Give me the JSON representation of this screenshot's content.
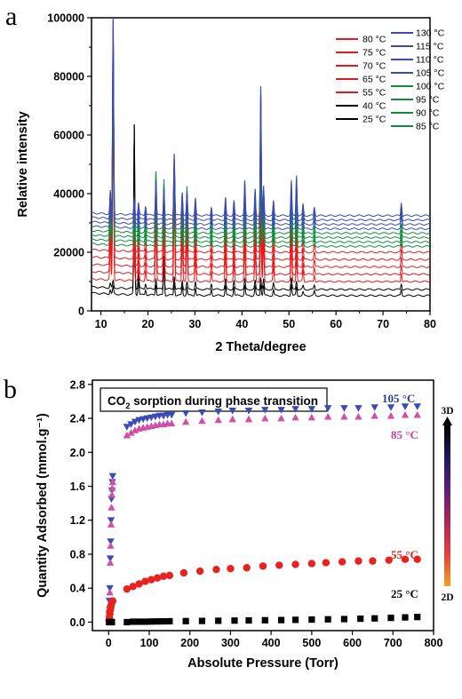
{
  "chart_data": [
    {
      "panel": "a",
      "type": "line",
      "xlabel": "2 Theta/degree",
      "ylabel": "Relative intensity",
      "xlim": [
        8,
        80
      ],
      "ylim": [
        0,
        100000
      ],
      "xticks": [
        "10",
        "20",
        "30",
        "40",
        "50",
        "60",
        "70",
        "80"
      ],
      "yticks": [
        "0",
        "20000",
        "40000",
        "60000",
        "80000",
        "100000"
      ],
      "legend_placement": "top-right",
      "peaks_2theta": [
        12.0,
        12.6,
        17.1,
        18.0,
        19.5,
        21.7,
        23.4,
        25.6,
        27.3,
        28.3,
        30.1,
        33.5,
        36.5,
        38.3,
        40.6,
        42.8,
        44.0,
        44.6,
        46.7,
        50.5,
        51.6,
        53.0,
        55.4,
        73.9
      ],
      "series": [
        {
          "name": "25 °C",
          "color": "#000000",
          "baseline": 5200,
          "peaks": [
            1500,
            2500,
            58000,
            5500,
            1800,
            3500,
            11500,
            4500,
            3000,
            2500,
            2500,
            2000,
            3500,
            3000,
            3500,
            3000,
            4000,
            3500,
            2000,
            4000,
            3000,
            1200,
            1500,
            2000
          ]
        },
        {
          "name": "40 °C",
          "color": "#000000",
          "baseline": 7300,
          "peaks": [
            1500,
            2500,
            56000,
            5500,
            1800,
            3500,
            11500,
            4500,
            3000,
            2500,
            2500,
            2000,
            3500,
            3000,
            3500,
            3000,
            4000,
            3500,
            2000,
            4000,
            3000,
            1200,
            1500,
            2000
          ]
        },
        {
          "name": "55 °C",
          "color": "#e8191c",
          "baseline": 10000,
          "peaks": [
            12000,
            60000,
            7500,
            4500,
            3500,
            22000,
            19000,
            28000,
            14000,
            16000,
            7500,
            3500,
            9000,
            5500,
            12000,
            10000,
            22000,
            13000,
            5000,
            12000,
            7500,
            4000,
            2500,
            3000
          ]
        },
        {
          "name": "65 °C",
          "color": "#e8191c",
          "baseline": 12500,
          "peaks": [
            12000,
            62000,
            7500,
            4500,
            3500,
            22000,
            19000,
            28000,
            14000,
            16000,
            7500,
            3500,
            9000,
            5500,
            12000,
            10000,
            22000,
            13000,
            5000,
            12000,
            7500,
            4000,
            2500,
            3000
          ]
        },
        {
          "name": "70 °C",
          "color": "#e8191c",
          "baseline": 15000,
          "peaks": [
            12000,
            62000,
            7500,
            4500,
            3500,
            22000,
            19000,
            28000,
            14000,
            16000,
            7500,
            3500,
            9000,
            5500,
            12000,
            10000,
            22000,
            13000,
            5000,
            12000,
            7500,
            4000,
            2500,
            3000
          ]
        },
        {
          "name": "75 °C",
          "color": "#e8191c",
          "baseline": 17500,
          "peaks": [
            12000,
            64000,
            7500,
            4500,
            3500,
            22000,
            19000,
            28000,
            14000,
            16000,
            7500,
            3500,
            9000,
            5500,
            12000,
            10000,
            22000,
            13000,
            5000,
            12000,
            7500,
            4000,
            2500,
            3000
          ]
        },
        {
          "name": "80 °C",
          "color": "#e8191c",
          "baseline": 20000,
          "peaks": [
            12000,
            64000,
            7500,
            4500,
            3500,
            22000,
            19000,
            28000,
            14000,
            16000,
            7500,
            3500,
            9000,
            5500,
            12000,
            10000,
            22000,
            13000,
            5000,
            12000,
            7500,
            4000,
            2500,
            3000
          ]
        },
        {
          "name": "85 °C",
          "color": "#0e8f3c",
          "baseline": 22000,
          "peaks": [
            12000,
            65000,
            7500,
            4500,
            3500,
            21000,
            18000,
            26000,
            14000,
            16000,
            7500,
            3500,
            9000,
            5500,
            12000,
            10000,
            28000,
            13000,
            5000,
            12000,
            9000,
            4000,
            2500,
            3000
          ]
        },
        {
          "name": "90 °C",
          "color": "#0e8f3c",
          "baseline": 23500,
          "peaks": [
            12000,
            65000,
            7500,
            4500,
            3500,
            21000,
            18000,
            26000,
            14000,
            16000,
            7500,
            3500,
            9000,
            5500,
            12000,
            10000,
            30000,
            13000,
            5000,
            12000,
            9000,
            4000,
            2500,
            3000
          ]
        },
        {
          "name": "95 °C",
          "color": "#0e8f3c",
          "baseline": 25000,
          "peaks": [
            12000,
            66000,
            7500,
            4500,
            3500,
            21000,
            18000,
            26000,
            14000,
            16000,
            7500,
            3500,
            9000,
            5500,
            12000,
            10000,
            32000,
            13000,
            5000,
            12000,
            9000,
            4000,
            2500,
            3000
          ]
        },
        {
          "name": "100 °C",
          "color": "#0e8f3c",
          "baseline": 26500,
          "peaks": [
            12000,
            66000,
            7500,
            4500,
            3500,
            21000,
            18000,
            26000,
            14000,
            16000,
            7500,
            3500,
            9000,
            5500,
            12000,
            10000,
            35000,
            13000,
            5000,
            12000,
            10000,
            4000,
            2500,
            3000
          ]
        },
        {
          "name": "105 °C",
          "color": "#3a4bb0",
          "baseline": 28000,
          "peaks": [
            8000,
            70000,
            6000,
            4000,
            3000,
            12000,
            9000,
            22000,
            8000,
            8000,
            6000,
            3000,
            6000,
            5000,
            12000,
            9000,
            40000,
            10000,
            5000,
            12000,
            12000,
            4000,
            3000,
            4500
          ]
        },
        {
          "name": "110 °C",
          "color": "#3a4bb0",
          "baseline": 29500,
          "peaks": [
            8000,
            70000,
            6000,
            4000,
            3000,
            12000,
            9000,
            22000,
            8000,
            8000,
            6000,
            3000,
            6000,
            5000,
            12000,
            9000,
            42000,
            10000,
            5000,
            12000,
            13000,
            4000,
            3000,
            4500
          ]
        },
        {
          "name": "115 °C",
          "color": "#3a4bb0",
          "baseline": 31000,
          "peaks": [
            8000,
            70000,
            6000,
            4000,
            3000,
            12000,
            9000,
            22000,
            8000,
            8000,
            6000,
            3000,
            6000,
            5000,
            12000,
            9000,
            44000,
            10000,
            5000,
            12000,
            14000,
            4000,
            3000,
            4500
          ]
        },
        {
          "name": "130 °C",
          "color": "#3a4bb0",
          "baseline": 32500,
          "peaks": [
            8000,
            70000,
            6000,
            4000,
            3000,
            12000,
            9000,
            22000,
            8000,
            8000,
            6000,
            3000,
            6000,
            5000,
            12000,
            9000,
            45000,
            10000,
            5000,
            12000,
            14000,
            4000,
            3000,
            4500
          ]
        }
      ],
      "legend_left": [
        "80 °C",
        "75 °C",
        "70 °C",
        "65 °C",
        "55 °C",
        "40 °C",
        "25 °C"
      ],
      "legend_right": [
        "130 °C",
        "115 °C",
        "110 °C",
        "105 °C",
        "100 °C",
        "95 °C",
        "90 °C",
        "85 °C"
      ]
    },
    {
      "panel": "b",
      "type": "scatter",
      "title": "CO2 sorption during phase transition",
      "title_main": "CO",
      "title_sub": "2",
      "title_rest": " sorption during phase transition",
      "xlabel": "Absolute Pressure (Torr)",
      "ylabel": "Quantity Adsorbed (mmol.g⁻¹)",
      "xlim": [
        -40,
        800
      ],
      "ylim": [
        -0.1,
        2.85
      ],
      "xticks": [
        "0",
        "100",
        "200",
        "300",
        "400",
        "500",
        "600",
        "700",
        "800"
      ],
      "yticks": [
        "0.0",
        "0.4",
        "0.8",
        "1.2",
        "1.6",
        "2.0",
        "2.4",
        "2.8"
      ],
      "colorbar": {
        "top_label": "3D",
        "bottom_label": "2D",
        "colors": [
          "#000000",
          "#1a1a5e",
          "#5a1d7a",
          "#b0245a",
          "#e04040",
          "#f0a020"
        ]
      },
      "series": [
        {
          "name": "105 °C",
          "marker": "triangle-down",
          "color": "#3a4bb8",
          "label_color": "#2a3aa0",
          "x": [
            1,
            2,
            3,
            4,
            5,
            6,
            7,
            8,
            9,
            10,
            45,
            55,
            65,
            75,
            85,
            95,
            105,
            115,
            125,
            135,
            145,
            155,
            190,
            230,
            270,
            305,
            345,
            385,
            425,
            460,
            500,
            540,
            580,
            615,
            655,
            695,
            730,
            760
          ],
          "y": [
            0.1,
            0.25,
            0.4,
            0.75,
            0.95,
            1.2,
            1.45,
            1.55,
            1.65,
            1.72,
            2.3,
            2.33,
            2.36,
            2.38,
            2.39,
            2.4,
            2.41,
            2.42,
            2.43,
            2.43,
            2.44,
            2.44,
            2.46,
            2.47,
            2.48,
            2.49,
            2.49,
            2.5,
            2.5,
            2.51,
            2.51,
            2.52,
            2.52,
            2.52,
            2.53,
            2.53,
            2.54,
            2.54
          ]
        },
        {
          "name": "85 °C",
          "marker": "triangle-up",
          "color": "#d050a8",
          "label_color": "#c8409a",
          "x": [
            1,
            2,
            3,
            4,
            5,
            6,
            7,
            8,
            9,
            10,
            45,
            55,
            65,
            75,
            85,
            95,
            105,
            115,
            125,
            135,
            145,
            155,
            190,
            230,
            270,
            305,
            345,
            385,
            425,
            460,
            500,
            540,
            580,
            615,
            655,
            695,
            730,
            760
          ],
          "y": [
            0.1,
            0.2,
            0.35,
            0.7,
            0.9,
            1.15,
            1.35,
            1.5,
            1.58,
            1.65,
            2.2,
            2.23,
            2.26,
            2.28,
            2.29,
            2.3,
            2.31,
            2.32,
            2.33,
            2.33,
            2.34,
            2.34,
            2.36,
            2.37,
            2.38,
            2.39,
            2.39,
            2.4,
            2.4,
            2.41,
            2.41,
            2.42,
            2.42,
            2.42,
            2.43,
            2.43,
            2.44,
            2.44
          ]
        },
        {
          "name": "55 °C",
          "marker": "circle",
          "color": "#e8221e",
          "label_color": "#e02020",
          "x": [
            1,
            2,
            3,
            4,
            5,
            6,
            8,
            10,
            45,
            60,
            75,
            90,
            105,
            120,
            135,
            150,
            185,
            225,
            265,
            300,
            340,
            380,
            420,
            460,
            500,
            535,
            575,
            615,
            650,
            690,
            730,
            760
          ],
          "y": [
            0.02,
            0.05,
            0.1,
            0.14,
            0.17,
            0.2,
            0.23,
            0.25,
            0.39,
            0.42,
            0.45,
            0.48,
            0.5,
            0.52,
            0.54,
            0.55,
            0.58,
            0.6,
            0.62,
            0.63,
            0.64,
            0.66,
            0.67,
            0.68,
            0.69,
            0.7,
            0.71,
            0.72,
            0.72,
            0.73,
            0.74,
            0.74
          ]
        },
        {
          "name": "25 °C",
          "marker": "square",
          "color": "#000000",
          "label_color": "#000000",
          "x": [
            1,
            3,
            5,
            8,
            45,
            60,
            75,
            90,
            105,
            120,
            135,
            150,
            190,
            230,
            270,
            310,
            345,
            385,
            425,
            460,
            500,
            540,
            580,
            620,
            655,
            695,
            730,
            760
          ],
          "y": [
            0.0,
            0.0,
            0.0,
            0.0,
            0.0,
            0.005,
            0.005,
            0.005,
            0.007,
            0.008,
            0.009,
            0.01,
            0.012,
            0.014,
            0.016,
            0.018,
            0.02,
            0.022,
            0.024,
            0.027,
            0.03,
            0.033,
            0.036,
            0.04,
            0.044,
            0.05,
            0.056,
            0.06
          ]
        }
      ]
    }
  ]
}
